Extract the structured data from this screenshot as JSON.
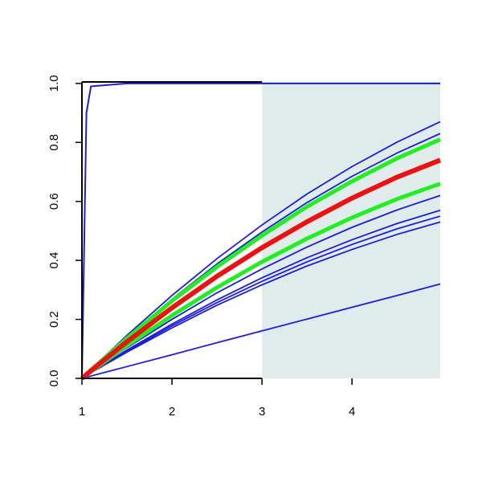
{
  "chart_data": {
    "type": "line",
    "x": [
      1,
      1.05,
      1.1,
      1.5,
      2,
      2.5,
      3,
      3.5,
      4,
      4.5,
      4.98
    ],
    "xlim": [
      1,
      4.98
    ],
    "ylim": [
      0,
      1.005
    ],
    "xticks": [
      1,
      2,
      3,
      4
    ],
    "yticks": [
      {
        "value": 0,
        "label": "0.0"
      },
      0.2,
      0.4,
      0.6,
      0.8,
      {
        "value": 1,
        "label": "1.0"
      }
    ],
    "shaded_xrange": [
      3,
      4.98
    ],
    "shade_color": "#e0ebeb",
    "series": [
      {
        "color": "#1c1ce0",
        "width": 2,
        "values": [
          0,
          0.9,
          0.99,
          1,
          1,
          1,
          1,
          1,
          1,
          1,
          1
        ]
      },
      {
        "color": "#1c1ce0",
        "width": 1.8,
        "values": [
          0,
          0.015,
          0.03,
          0.146,
          0.281,
          0.406,
          0.52,
          0.625,
          0.718,
          0.801,
          0.87
        ]
      },
      {
        "color": "#1c1ce0",
        "width": 1.8,
        "values": [
          0,
          0.014,
          0.029,
          0.139,
          0.268,
          0.388,
          0.496,
          0.596,
          0.685,
          0.764,
          0.83
        ]
      },
      {
        "color": "#1c1ce0",
        "width": 1.8,
        "values": [
          0,
          0.011,
          0.022,
          0.104,
          0.2,
          0.29,
          0.371,
          0.445,
          0.512,
          0.571,
          0.62
        ]
      },
      {
        "color": "#1c1ce0",
        "width": 1.8,
        "values": [
          0,
          0.01,
          0.02,
          0.096,
          0.184,
          0.266,
          0.341,
          0.409,
          0.47,
          0.525,
          0.57
        ]
      },
      {
        "color": "#1c1ce0",
        "width": 1.8,
        "values": [
          0,
          0.009,
          0.019,
          0.092,
          0.178,
          0.257,
          0.329,
          0.395,
          0.454,
          0.507,
          0.55
        ]
      },
      {
        "color": "#1c1ce0",
        "width": 1.8,
        "values": [
          0,
          0.009,
          0.019,
          0.089,
          0.171,
          0.248,
          0.317,
          0.381,
          0.437,
          0.488,
          0.53
        ]
      },
      {
        "color": "#1c1ce0",
        "width": 1.8,
        "values": [
          0,
          0.004,
          0.008,
          0.04,
          0.08,
          0.121,
          0.161,
          0.201,
          0.241,
          0.281,
          0.32
        ]
      },
      {
        "color": "#22ee22",
        "width": 5,
        "values": [
          0,
          0.014,
          0.028,
          0.136,
          0.262,
          0.378,
          0.484,
          0.582,
          0.668,
          0.746,
          0.81
        ]
      },
      {
        "color": "#22ee22",
        "width": 5,
        "values": [
          0,
          0.011,
          0.023,
          0.111,
          0.213,
          0.308,
          0.395,
          0.474,
          0.545,
          0.608,
          0.66
        ]
      },
      {
        "color": "#ee1111",
        "width": 6,
        "values": [
          0,
          0.013,
          0.026,
          0.124,
          0.239,
          0.346,
          0.443,
          0.531,
          0.611,
          0.682,
          0.74
        ]
      }
    ]
  }
}
